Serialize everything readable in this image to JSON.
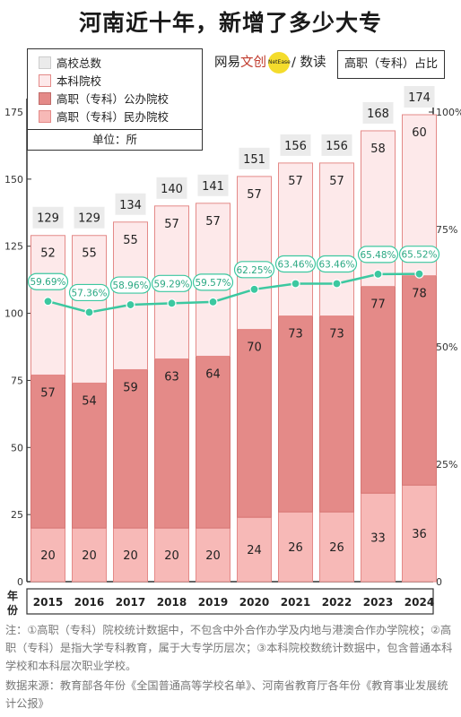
{
  "title": "河南近十年，新增了多少大专",
  "brand": {
    "left": "网易",
    "mid": "文创",
    "logo": "NetEase",
    "right": "/ 数读"
  },
  "ratio_label": "高职（专科）占比",
  "legend": {
    "items": [
      {
        "label": "高校总数",
        "color": "#ebebeb"
      },
      {
        "label": "本科院校",
        "color": "#fde9ea"
      },
      {
        "label": "高职（专科）公办院校",
        "color": "#e48a88"
      },
      {
        "label": "高职（专科）民办院校",
        "color": "#f7b9b7"
      }
    ],
    "unit": "单位：所"
  },
  "year_axis_label": "年份",
  "notes": "注：①高职（专科）院校统计数据中，不包含中外合作办学及内地与港澳合作办学院校；②高职（专科）是指大学专科教育，属于大专学历层次；③本科院校数统计数据中，包含普通本科学校和本科层次职业学校。",
  "source": "数据来源：教育部各年份《全国普通高等学校名单》、河南省教育厅各年份《教育事业发展统计公报》",
  "chart_data": {
    "type": "bar",
    "stacked": true,
    "categories": [
      "2015",
      "2016",
      "2017",
      "2018",
      "2019",
      "2020",
      "2021",
      "2022",
      "2023",
      "2024"
    ],
    "series": [
      {
        "name": "高职（专科）民办院校",
        "color": "#f7b9b7",
        "values": [
          20,
          20,
          20,
          20,
          20,
          24,
          26,
          26,
          33,
          36
        ]
      },
      {
        "name": "高职（专科）公办院校",
        "color": "#e48a88",
        "values": [
          57,
          54,
          59,
          63,
          64,
          70,
          73,
          73,
          77,
          78
        ]
      },
      {
        "name": "本科院校",
        "color": "#fde9ea",
        "values": [
          52,
          55,
          55,
          57,
          57,
          57,
          57,
          57,
          58,
          60
        ]
      }
    ],
    "totals": [
      129,
      129,
      134,
      140,
      141,
      151,
      156,
      156,
      168,
      174
    ],
    "ratio": {
      "name": "高职（专科）占比",
      "color": "#3cc8a0",
      "values": [
        59.69,
        57.36,
        58.96,
        59.29,
        59.57,
        62.25,
        63.46,
        63.46,
        65.48,
        65.52
      ],
      "labels": [
        "59.69%",
        "57.36%",
        "58.96%",
        "59.29%",
        "59.57%",
        "62.25%",
        "63.46%",
        "63.46%",
        "65.48%",
        "65.52%"
      ]
    },
    "ylim": [
      0,
      175
    ],
    "yticks": [
      0,
      25,
      50,
      75,
      100,
      125,
      150,
      175
    ],
    "y2lim": [
      0,
      100
    ],
    "y2ticks": [
      "0",
      "25%",
      "50%",
      "75%",
      "100%"
    ],
    "grid": false
  }
}
